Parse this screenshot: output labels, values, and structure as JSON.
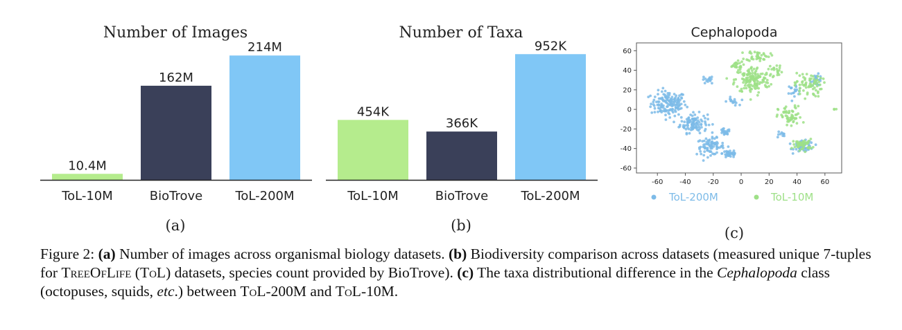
{
  "colors": {
    "tol10m": "#b5ec8d",
    "biotrove": "#3a4059",
    "tol200m": "#80c7f6",
    "scatter_blue": "#7dbbe8",
    "scatter_green": "#9ee087",
    "axis": "#222222"
  },
  "chart_data": [
    {
      "type": "bar",
      "title": "Number of Images",
      "categories": [
        "ToL-10M",
        "BioTrove",
        "ToL-200M"
      ],
      "values": [
        10.4,
        162,
        214
      ],
      "value_labels": [
        "10.4M",
        "162M",
        "214M"
      ],
      "unit": "M",
      "ylim": [
        0,
        250
      ],
      "panel_label": "(a)"
    },
    {
      "type": "bar",
      "title": "Number of Taxa",
      "categories": [
        "ToL-10M",
        "BioTrove",
        "ToL-200M"
      ],
      "values": [
        454,
        366,
        952
      ],
      "value_labels": [
        "454K",
        "366K",
        "952K"
      ],
      "unit": "K",
      "ylim": [
        0,
        1100
      ],
      "panel_label": "(b)"
    },
    {
      "type": "scatter",
      "title": "Cephalopoda",
      "xlim": [
        -75,
        72
      ],
      "ylim": [
        -65,
        68
      ],
      "xticks": [
        -60,
        -40,
        -20,
        0,
        20,
        40,
        60
      ],
      "yticks": [
        -60,
        -40,
        -20,
        0,
        20,
        40,
        60
      ],
      "legend": "bottom",
      "panel_label": "(c)",
      "series": [
        {
          "name": "ToL-200M",
          "clusters": [
            {
              "cx": -52,
              "cy": 6,
              "sx": 9,
              "sy": 9,
              "n": 150
            },
            {
              "cx": -34,
              "cy": -14,
              "sx": 7,
              "sy": 7,
              "n": 110
            },
            {
              "cx": -22,
              "cy": -38,
              "sx": 7,
              "sy": 6,
              "n": 80
            },
            {
              "cx": -8,
              "cy": -45,
              "sx": 4,
              "sy": 3,
              "n": 40
            },
            {
              "cx": -12,
              "cy": -24,
              "sx": 3,
              "sy": 3,
              "n": 20
            },
            {
              "cx": -24,
              "cy": 30,
              "sx": 3,
              "sy": 3,
              "n": 15
            },
            {
              "cx": 45,
              "cy": -38,
              "sx": 5,
              "sy": 4,
              "n": 60
            },
            {
              "cx": 54,
              "cy": 30,
              "sx": 3,
              "sy": 4,
              "n": 30
            },
            {
              "cx": 38,
              "cy": 20,
              "sx": 4,
              "sy": 4,
              "n": 20
            },
            {
              "cx": -6,
              "cy": 8,
              "sx": 3,
              "sy": 3,
              "n": 15
            },
            {
              "cx": 28,
              "cy": -26,
              "sx": 3,
              "sy": 3,
              "n": 10
            }
          ]
        },
        {
          "name": "ToL-10M",
          "clusters": [
            {
              "cx": 8,
              "cy": 30,
              "sx": 9,
              "sy": 10,
              "n": 150
            },
            {
              "cx": 12,
              "cy": 55,
              "sx": 6,
              "sy": 4,
              "n": 40
            },
            {
              "cx": -4,
              "cy": 45,
              "sx": 4,
              "sy": 3,
              "n": 25
            },
            {
              "cx": 48,
              "cy": 25,
              "sx": 7,
              "sy": 9,
              "n": 70
            },
            {
              "cx": 35,
              "cy": -8,
              "sx": 6,
              "sy": 8,
              "n": 60
            },
            {
              "cx": 44,
              "cy": -36,
              "sx": 5,
              "sy": 4,
              "n": 50
            },
            {
              "cx": 25,
              "cy": 40,
              "sx": 4,
              "sy": 4,
              "n": 20
            },
            {
              "cx": 67,
              "cy": 0,
              "sx": 1,
              "sy": 1,
              "n": 3
            }
          ]
        }
      ]
    }
  ],
  "caption": {
    "figure_label": "Figure 2:",
    "a_label": "(a)",
    "a_text": "Number of images across organismal biology datasets.",
    "b_label": "(b)",
    "b_text_1": "Biodiversity comparison across datasets (measured unique 7-tuples for",
    "treeoflife": "TreeOfLife",
    "tol": "ToL",
    "b_text_2": "datasets, species count provided by BioTrove).",
    "c_label": "(c)",
    "c_text_1": "The taxa distributional difference in the",
    "c_class": "Cephalopoda",
    "c_text_2": "class (octopuses, squids,",
    "c_etc": "etc",
    "c_text_3": ".) between",
    "tol200m": "ToL-200M",
    "and": "and",
    "tol10m": "ToL-10M."
  }
}
